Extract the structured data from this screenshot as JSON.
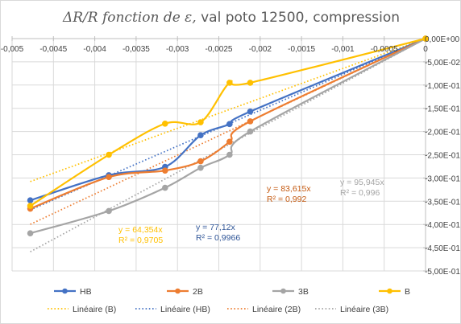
{
  "chart_data": {
    "type": "line",
    "title_math": "ΔR/R  fonction de ε,",
    "title_rest": " val poto 12500, compression",
    "xlim": [
      -0.005,
      0
    ],
    "ylim": [
      -0.5,
      0
    ],
    "x_ticks": [
      -0.005,
      -0.0045,
      -0.004,
      -0.0035,
      -0.003,
      -0.0025,
      -0.002,
      -0.0015,
      -0.001,
      -0.0005,
      0
    ],
    "x_tick_labels": [
      "-0,005",
      "-0,0045",
      "-0,004",
      "-0,0035",
      "-0,003",
      "-0,0025",
      "-0,002",
      "-0,0015",
      "-0,001",
      "-0,0005",
      "0"
    ],
    "y_ticks": [
      0,
      -0.05,
      -0.1,
      -0.15,
      -0.2,
      -0.25,
      -0.3,
      -0.35,
      -0.4,
      -0.45,
      -0.5
    ],
    "y_tick_labels": [
      "0,00E+00",
      "-5,00E-02",
      "-1,00E-01",
      "-1,50E-01",
      "-2,00E-01",
      "-2,50E-01",
      "-3,00E-01",
      "-3,50E-01",
      "-4,00E-01",
      "-4,50E-01",
      "-5,00E-01"
    ],
    "grid": true,
    "legend_position": "bottom",
    "series": [
      {
        "name": "HB",
        "color": "#4472c4",
        "x": [
          -0.00478,
          -0.00383,
          -0.00315,
          -0.00272,
          -0.00237,
          -0.00212,
          0
        ],
        "y": [
          -0.348,
          -0.294,
          -0.276,
          -0.208,
          -0.184,
          -0.157,
          0
        ]
      },
      {
        "name": "2B",
        "color": "#ed7d31",
        "x": [
          -0.00478,
          -0.00383,
          -0.00315,
          -0.00272,
          -0.00237,
          -0.00212,
          0
        ],
        "y": [
          -0.366,
          -0.298,
          -0.284,
          -0.264,
          -0.222,
          -0.178,
          0
        ]
      },
      {
        "name": "3B",
        "color": "#a5a5a5",
        "x": [
          -0.00478,
          -0.00383,
          -0.00315,
          -0.00272,
          -0.00237,
          -0.00212,
          0
        ],
        "y": [
          -0.419,
          -0.371,
          -0.321,
          -0.278,
          -0.25,
          -0.2,
          0
        ]
      },
      {
        "name": "B",
        "color": "#ffc000",
        "x": [
          -0.00478,
          -0.00383,
          -0.00315,
          -0.00272,
          -0.00237,
          -0.00212,
          0
        ],
        "y": [
          -0.36,
          -0.25,
          -0.183,
          -0.18,
          -0.095,
          -0.095,
          0
        ]
      }
    ],
    "trendlines": [
      {
        "name": "Linéaire (B)",
        "color": "#ffc000",
        "slope": 64.354,
        "equation": "y = 64,354x",
        "r2": "R² = 0,9705"
      },
      {
        "name": "Linéaire (HB)",
        "color": "#4472c4",
        "slope": 77.12,
        "equation": "y = 77,12x",
        "r2": "R² = 0,9966"
      },
      {
        "name": "Linéaire (2B)",
        "color": "#ed7d31",
        "slope": 83.615,
        "equation": "y = 83,615x",
        "r2": "R² = 0,992"
      },
      {
        "name": "Linéaire (3B)",
        "color": "#a5a5a5",
        "slope": 95.945,
        "equation": "y = 95,945x",
        "r2": "R² = 0,996"
      }
    ]
  }
}
